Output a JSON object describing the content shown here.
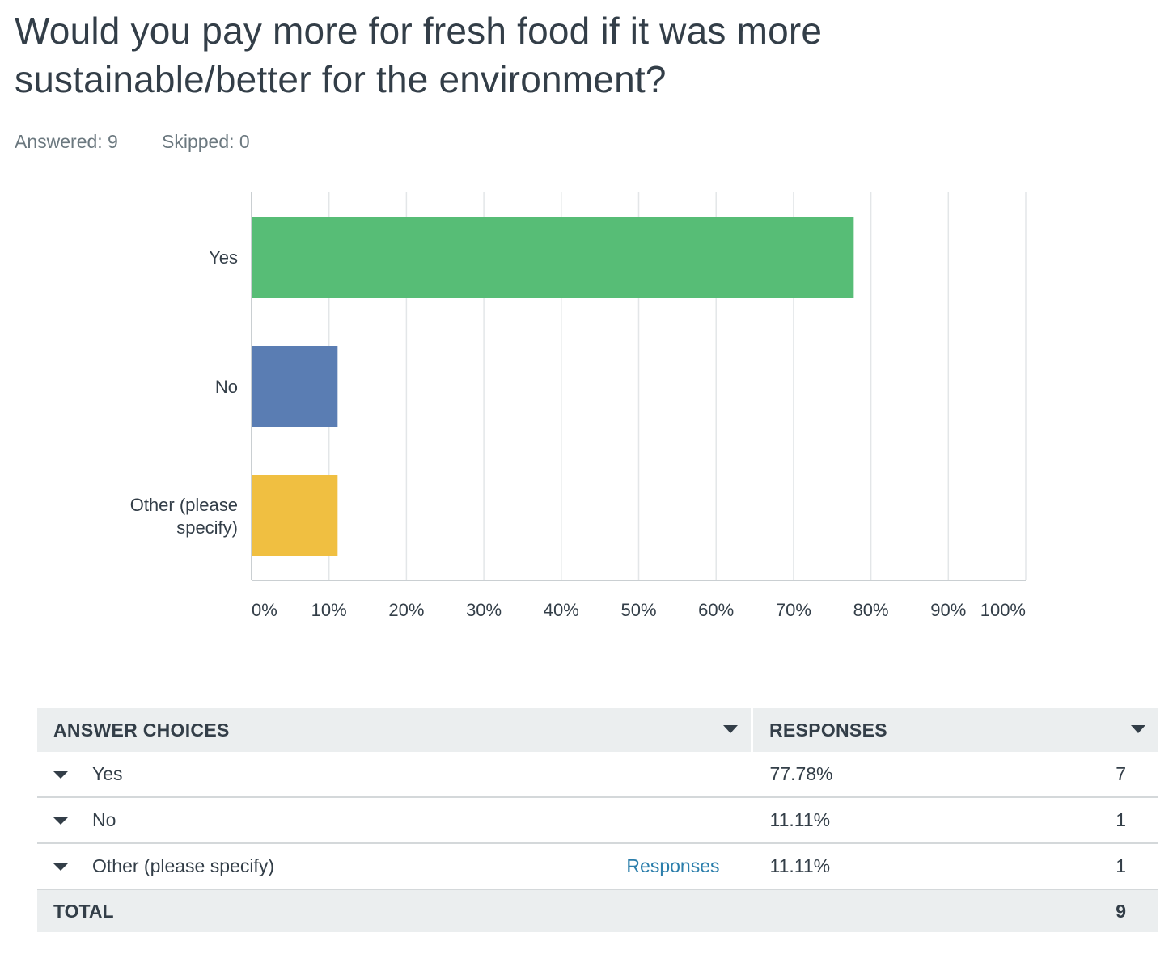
{
  "question": {
    "title": "Would you pay more for fresh food if it was more sustainable/better for the environment?",
    "answered_label": "Answered: 9",
    "skipped_label": "Skipped: 0"
  },
  "chart_data": {
    "type": "bar",
    "orientation": "horizontal",
    "categories": [
      "Yes",
      "No",
      "Other (please specify)"
    ],
    "category_label_lines": [
      [
        "Yes"
      ],
      [
        "No"
      ],
      [
        "Other (please",
        "specify)"
      ]
    ],
    "values": [
      77.78,
      11.11,
      11.11
    ],
    "colors": [
      "#57bd76",
      "#5a7db3",
      "#f0bf41"
    ],
    "xlim": [
      0,
      100
    ],
    "x_ticks": [
      0,
      10,
      20,
      30,
      40,
      50,
      60,
      70,
      80,
      90,
      100
    ],
    "x_tick_labels": [
      "0%",
      "10%",
      "20%",
      "30%",
      "40%",
      "50%",
      "60%",
      "70%",
      "80%",
      "90%",
      "100%"
    ],
    "grid": true,
    "title": "",
    "xlabel": "",
    "ylabel": ""
  },
  "table": {
    "headers": {
      "choices": "ANSWER CHOICES",
      "responses": "RESPONSES"
    },
    "rows": [
      {
        "choice": "Yes",
        "percent": "77.78%",
        "count": "7",
        "link": ""
      },
      {
        "choice": "No",
        "percent": "11.11%",
        "count": "1",
        "link": ""
      },
      {
        "choice": "Other (please specify)",
        "percent": "11.11%",
        "count": "1",
        "link": "Responses"
      }
    ],
    "total": {
      "label": "TOTAL",
      "count": "9"
    }
  }
}
